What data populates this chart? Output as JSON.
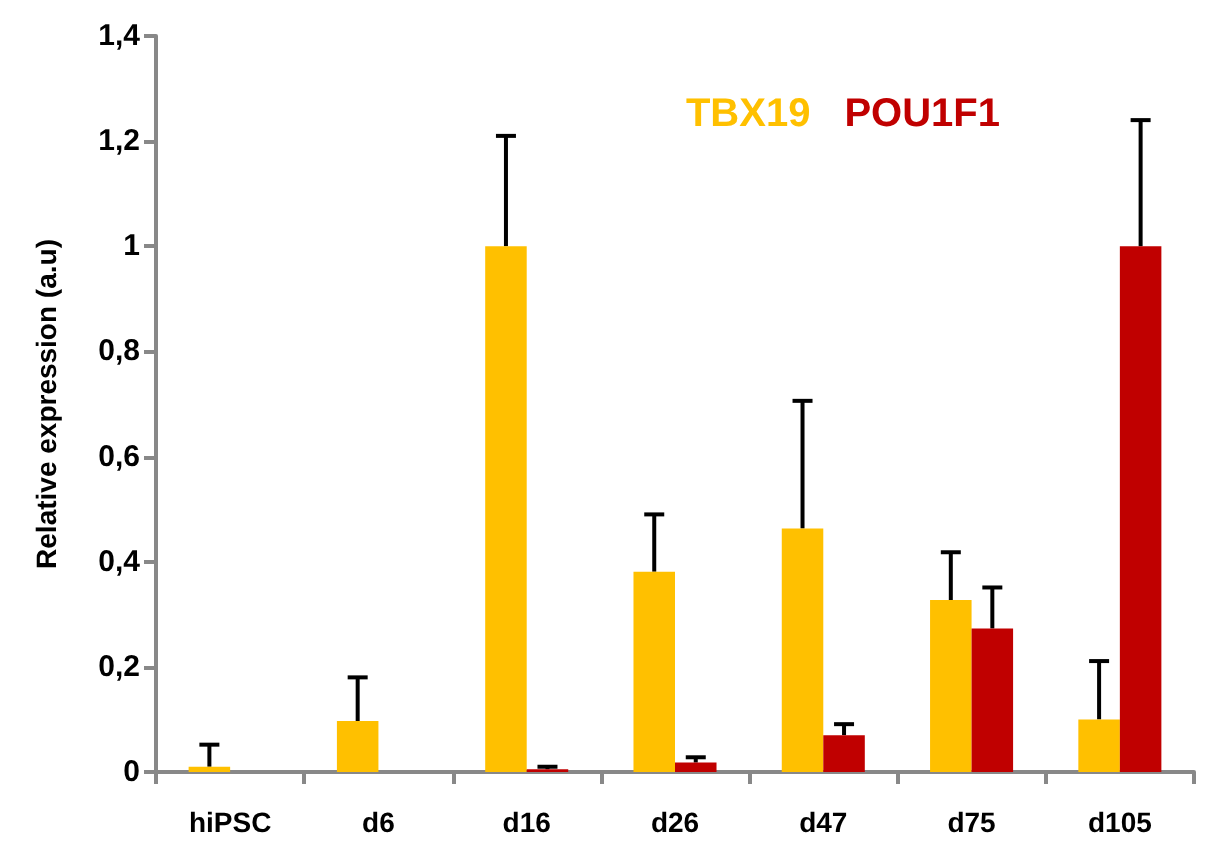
{
  "chart_data": {
    "type": "bar",
    "ylabel": "Relative expression (a.u)",
    "categories": [
      "hiPSC",
      "d6",
      "d16",
      "d26",
      "d47",
      "d75",
      "d105"
    ],
    "series": [
      {
        "name": "TBX19",
        "color": "#ffc000",
        "values": [
          0.01,
          0.097,
          1.0,
          0.381,
          0.463,
          0.327,
          0.1
        ],
        "errors": [
          [
            0.01,
            0.052
          ],
          [
            0.097,
            0.18
          ],
          [
            1.0,
            1.21
          ],
          [
            0.381,
            0.49
          ],
          [
            0.463,
            0.706
          ],
          [
            0.327,
            0.418
          ],
          [
            0.1,
            0.211
          ]
        ]
      },
      {
        "name": "POU1F1",
        "color": "#c00000",
        "values": [
          0,
          0,
          0.005,
          0.018,
          0.07,
          0.273,
          1.0
        ],
        "errors": [
          null,
          null,
          [
            0.005,
            0.01
          ],
          [
            0.018,
            0.028
          ],
          [
            0.07,
            0.091
          ],
          [
            0.273,
            0.351
          ],
          [
            1.0,
            1.24
          ]
        ]
      }
    ],
    "ylim": [
      0,
      1.4
    ],
    "yticks": [
      0,
      {
        "value": 0.2,
        "label": "0,2"
      },
      {
        "value": 0.4,
        "label": "0,4"
      },
      {
        "value": 0.6,
        "label": "0,6"
      },
      {
        "value": 0.8,
        "label": "0,8"
      },
      1,
      {
        "value": 1.2,
        "label": "1,2"
      },
      {
        "value": 1.4,
        "label": "1,4"
      }
    ],
    "grid": false,
    "legend": "top right"
  }
}
